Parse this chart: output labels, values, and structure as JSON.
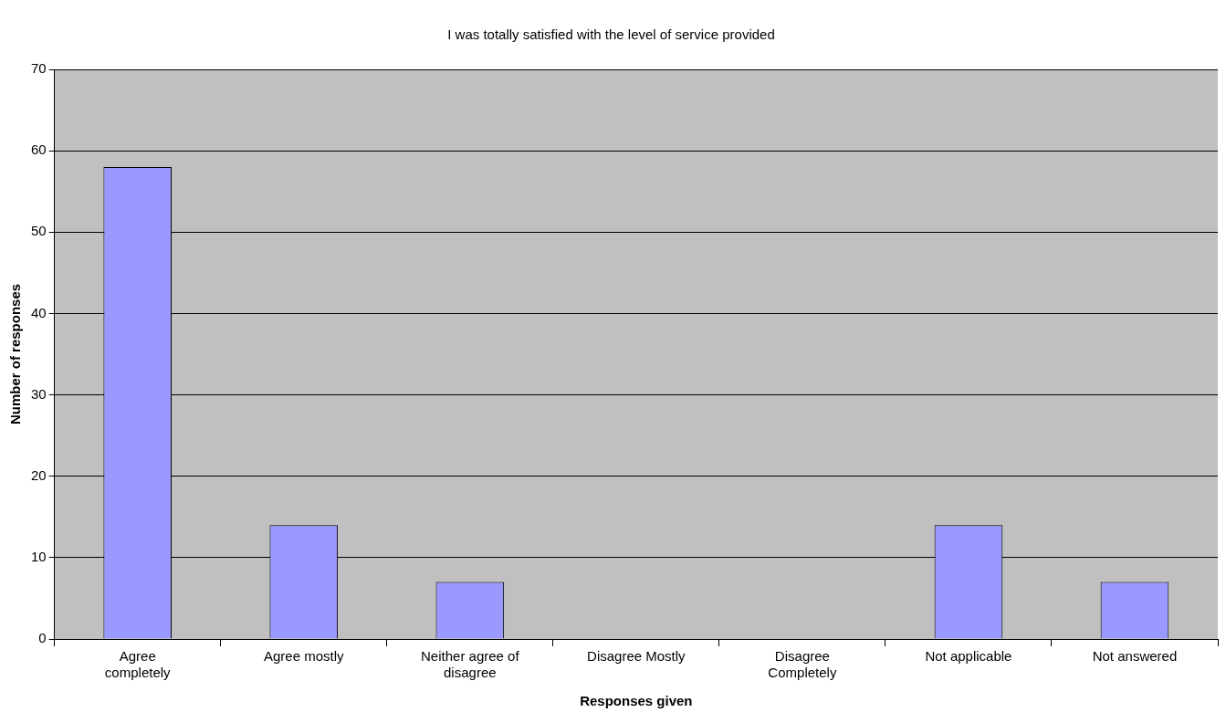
{
  "chart_data": {
    "type": "bar",
    "title": "I was totally satisfied with the level of service provided",
    "xlabel": "Responses given",
    "ylabel": "Number of responses",
    "categories": [
      "Agree completely",
      "Agree mostly",
      "Neither agree of disagree",
      "Disagree Mostly",
      "Disagree Completely",
      "Not applicable",
      "Not answered"
    ],
    "values": [
      58,
      14,
      7,
      0,
      0,
      14,
      7
    ],
    "color": "#9999ff",
    "ylim": [
      0,
      70
    ],
    "yticks": [
      0,
      10,
      20,
      30,
      40,
      50,
      60,
      70
    ],
    "grid": "y",
    "legend": false
  }
}
